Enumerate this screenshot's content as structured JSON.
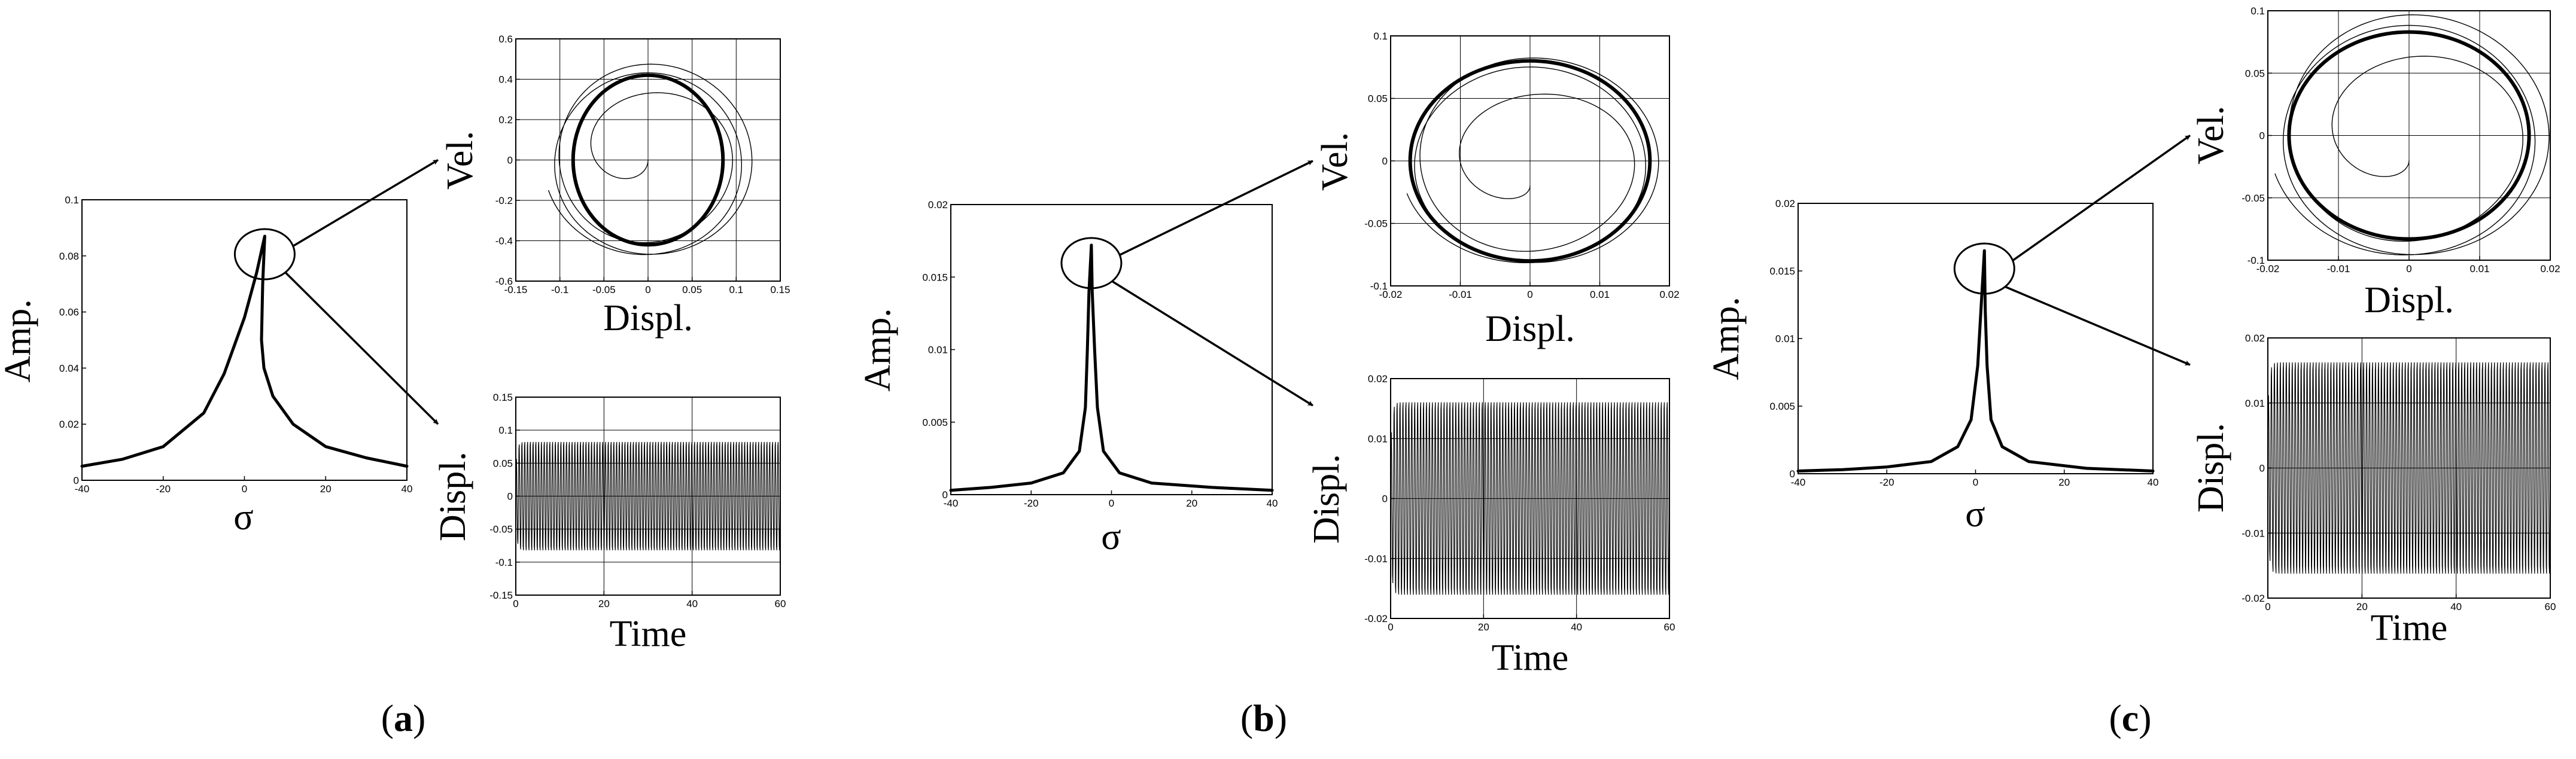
{
  "panels": [
    {
      "open": "(",
      "letter": "a",
      "close": ")"
    },
    {
      "open": "(",
      "letter": "b",
      "close": ")"
    },
    {
      "open": "(",
      "letter": "c",
      "close": ")"
    }
  ],
  "chart_data": [
    {
      "type": "line",
      "panel": "a",
      "role": "frequency-response",
      "xlabel": "σ",
      "ylabel": "Amp.",
      "xlim": [
        -40,
        40
      ],
      "ylim": [
        0,
        0.1
      ],
      "xticks": [
        -40,
        -20,
        0,
        20,
        40
      ],
      "yticks": [
        0,
        0.02,
        0.04,
        0.06,
        0.08,
        0.1
      ],
      "xticklabels": [
        "-40",
        "-20",
        "0",
        "20",
        "40"
      ],
      "yticklabels": [
        "0",
        "0.02",
        "0.04",
        "0.06",
        "0.08",
        "0.1"
      ],
      "grid": false,
      "peak": {
        "x": 5,
        "y": 0.087
      },
      "series": [
        {
          "points": [
            [
              -40,
              0.005
            ],
            [
              -30,
              0.0075
            ],
            [
              -20,
              0.012
            ],
            [
              -10,
              0.024
            ],
            [
              -5,
              0.038
            ],
            [
              0,
              0.058
            ],
            [
              3,
              0.074
            ],
            [
              5,
              0.087
            ],
            [
              4.5,
              0.07
            ],
            [
              4.2,
              0.05
            ],
            [
              4.8,
              0.04
            ],
            [
              7,
              0.03
            ],
            [
              12,
              0.02
            ],
            [
              20,
              0.012
            ],
            [
              30,
              0.008
            ],
            [
              40,
              0.005
            ]
          ]
        }
      ]
    },
    {
      "type": "line",
      "panel": "a",
      "role": "phase-plane",
      "xlabel": "Displ.",
      "ylabel": "Vel.",
      "xlim": [
        -0.15,
        0.15
      ],
      "ylim": [
        -0.6,
        0.6
      ],
      "xticks": [
        -0.15,
        -0.1,
        -0.05,
        0,
        0.05,
        0.1,
        0.15
      ],
      "yticks": [
        -0.6,
        -0.4,
        -0.2,
        0,
        0.2,
        0.4,
        0.6
      ],
      "xticklabels": [
        "-0.15",
        "-0.1",
        "-0.05",
        "0",
        "0.05",
        "0.1",
        "0.15"
      ],
      "yticklabels": [
        "-0.6",
        "-0.4",
        "-0.2",
        "0",
        "0.2",
        "0.4",
        "0.6"
      ],
      "grid": true,
      "limit_cycle": {
        "amp_x": 0.085,
        "amp_y": 0.42
      },
      "transient": {
        "start": [
          0,
          0
        ],
        "max_x": 0.11,
        "max_y": 0.46
      }
    },
    {
      "type": "line",
      "panel": "a",
      "role": "time-history",
      "xlabel": "Time",
      "ylabel": "Displ.",
      "xlim": [
        0,
        60
      ],
      "ylim": [
        -0.15,
        0.15
      ],
      "xticks": [
        0,
        20,
        40,
        60
      ],
      "yticks": [
        -0.15,
        -0.1,
        -0.05,
        0,
        0.05,
        0.1,
        0.15
      ],
      "xticklabels": [
        "0",
        "20",
        "40",
        "60"
      ],
      "yticklabels": [
        "-0.15",
        "-0.1",
        "-0.05",
        "0",
        "0.05",
        "0.1",
        "0.15"
      ],
      "grid": true,
      "amplitude": 0.086,
      "oscillations": 95
    },
    {
      "type": "line",
      "panel": "b",
      "role": "frequency-response",
      "xlabel": "σ",
      "ylabel": "Amp.",
      "xlim": [
        -40,
        40
      ],
      "ylim": [
        0,
        0.02
      ],
      "xticks": [
        -40,
        -20,
        0,
        20,
        40
      ],
      "yticks": [
        0,
        0.005,
        0.01,
        0.015,
        0.02
      ],
      "xticklabels": [
        "-40",
        "-20",
        "0",
        "20",
        "40"
      ],
      "yticklabels": [
        "0",
        "0.005",
        "0.01",
        "0.015",
        "0.02"
      ],
      "grid": false,
      "peak": {
        "x": -5,
        "y": 0.0172
      },
      "series": [
        {
          "points": [
            [
              -40,
              0.0003
            ],
            [
              -30,
              0.0005
            ],
            [
              -20,
              0.0008
            ],
            [
              -12,
              0.0015
            ],
            [
              -8,
              0.003
            ],
            [
              -6.5,
              0.006
            ],
            [
              -6,
              0.01
            ],
            [
              -5.6,
              0.014
            ],
            [
              -5,
              0.0172
            ],
            [
              -4.8,
              0.014
            ],
            [
              -4.2,
              0.01
            ],
            [
              -3.5,
              0.006
            ],
            [
              -2,
              0.003
            ],
            [
              2,
              0.0015
            ],
            [
              10,
              0.0008
            ],
            [
              25,
              0.0005
            ],
            [
              40,
              0.0003
            ]
          ]
        }
      ]
    },
    {
      "type": "line",
      "panel": "b",
      "role": "phase-plane",
      "xlabel": "Displ.",
      "ylabel": "Vel.",
      "xlim": [
        -0.02,
        0.02
      ],
      "ylim": [
        -0.1,
        0.1
      ],
      "xticks": [
        -0.02,
        -0.01,
        0,
        0.01,
        0.02
      ],
      "yticks": [
        -0.1,
        -0.05,
        0,
        0.05,
        0.1
      ],
      "xticklabels": [
        "-0.02",
        "-0.01",
        "0",
        "0.01",
        "0.02"
      ],
      "yticklabels": [
        "-0.1",
        "-0.05",
        "0",
        "0.05",
        "0.1"
      ],
      "grid": true,
      "limit_cycle": {
        "amp_x": 0.0172,
        "amp_y": 0.08
      },
      "transient": {
        "start": [
          0,
          -0.02
        ],
        "max_x": 0.0172,
        "max_y": 0.08
      }
    },
    {
      "type": "line",
      "panel": "b",
      "role": "time-history",
      "xlabel": "Time",
      "ylabel": "Displ.",
      "xlim": [
        0,
        60
      ],
      "ylim": [
        -0.02,
        0.02
      ],
      "xticks": [
        0,
        20,
        40,
        60
      ],
      "yticks": [
        -0.02,
        -0.01,
        0,
        0.01,
        0.02
      ],
      "xticklabels": [
        "0",
        "20",
        "40",
        "60"
      ],
      "yticklabels": [
        "-0.02",
        "-0.01",
        "0",
        "0.01",
        "0.02"
      ],
      "grid": true,
      "amplitude": 0.0168,
      "oscillations": 95
    },
    {
      "type": "line",
      "panel": "c",
      "role": "frequency-response",
      "xlabel": "σ",
      "ylabel": "Amp.",
      "xlim": [
        -40,
        40
      ],
      "ylim": [
        0,
        0.02
      ],
      "xticks": [
        -40,
        -20,
        0,
        20,
        40
      ],
      "yticks": [
        0,
        0.005,
        0.01,
        0.015,
        0.02
      ],
      "xticklabels": [
        "-40",
        "-20",
        "0",
        "20",
        "40"
      ],
      "yticklabels": [
        "0",
        "0.005",
        "0.01",
        "0.015",
        "0.02"
      ],
      "grid": false,
      "peak": {
        "x": 2,
        "y": 0.0165
      },
      "series": [
        {
          "points": [
            [
              -40,
              0.0002
            ],
            [
              -30,
              0.0003
            ],
            [
              -20,
              0.0005
            ],
            [
              -10,
              0.0009
            ],
            [
              -4,
              0.002
            ],
            [
              -1,
              0.004
            ],
            [
              0.5,
              0.008
            ],
            [
              1.2,
              0.012
            ],
            [
              2,
              0.0165
            ],
            [
              2.2,
              0.012
            ],
            [
              2.6,
              0.008
            ],
            [
              3.5,
              0.004
            ],
            [
              6,
              0.002
            ],
            [
              12,
              0.0009
            ],
            [
              25,
              0.0004
            ],
            [
              40,
              0.0002
            ]
          ]
        }
      ]
    },
    {
      "type": "line",
      "panel": "c",
      "role": "phase-plane",
      "xlabel": "Displ.",
      "ylabel": "Vel.",
      "xlim": [
        -0.02,
        0.02
      ],
      "ylim": [
        -0.1,
        0.1
      ],
      "xticks": [
        -0.02,
        -0.01,
        0,
        0.01,
        0.02
      ],
      "yticks": [
        -0.1,
        -0.05,
        0,
        0.05,
        0.1
      ],
      "xticklabels": [
        "-0.02",
        "-0.01",
        "0",
        "0.01",
        "0.02"
      ],
      "yticklabels": [
        "-0.1",
        "-0.05",
        "0",
        "0.05",
        "0.1"
      ],
      "grid": true,
      "limit_cycle": {
        "amp_x": 0.017,
        "amp_y": 0.083
      },
      "transient": {
        "start": [
          0,
          -0.02
        ],
        "max_x": 0.0185,
        "max_y": 0.094
      }
    },
    {
      "type": "line",
      "panel": "c",
      "role": "time-history",
      "xlabel": "Time",
      "ylabel": "Displ.",
      "xlim": [
        0,
        60
      ],
      "ylim": [
        -0.02,
        0.02
      ],
      "xticks": [
        0,
        20,
        40,
        60
      ],
      "yticks": [
        -0.02,
        -0.01,
        0,
        0.01,
        0.02
      ],
      "xticklabels": [
        "0",
        "20",
        "40",
        "60"
      ],
      "yticklabels": [
        "-0.02",
        "-0.01",
        "0",
        "0.01",
        "0.02"
      ],
      "grid": true,
      "amplitude": 0.017,
      "oscillations": 95
    }
  ]
}
